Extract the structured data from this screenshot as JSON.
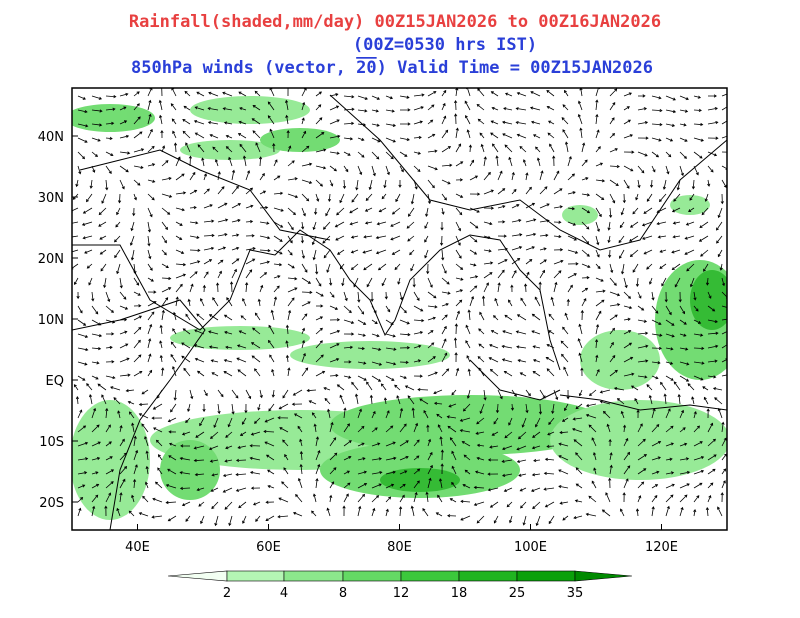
{
  "title": {
    "line1": "Rainfall(shaded,mm/day) 00Z15JAN2026 to 00Z16JAN2026",
    "line2": "(00Z=0530 hrs IST)",
    "line3_start": "850hPa winds (vector,",
    "reference_vector": "20",
    "line3_end": ")  Valid Time = 00Z15JAN2026"
  },
  "map": {
    "lat_labels": [
      "40N",
      "30N",
      "20N",
      "10N",
      "EQ",
      "10S",
      "20S"
    ],
    "lon_labels": [
      "40E",
      "60E",
      "80E",
      "100E",
      "120E"
    ]
  },
  "colorbar": {
    "levels": [
      2,
      4,
      8,
      12,
      18,
      25,
      35
    ],
    "colors": [
      "#f2fff2",
      "#b4f5b4",
      "#8ce88c",
      "#64d964",
      "#3cc83c",
      "#20b420",
      "#0aa00a",
      "#008a00"
    ]
  }
}
